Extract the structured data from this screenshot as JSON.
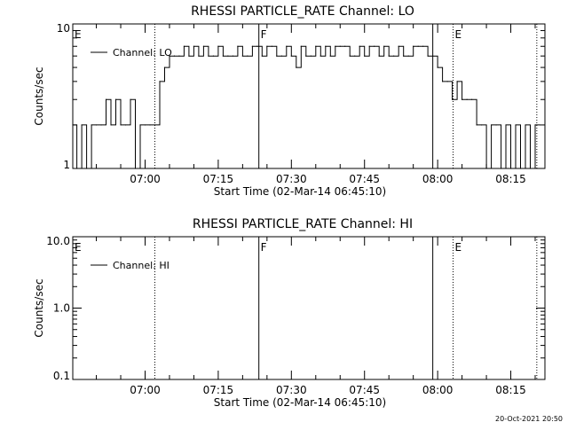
{
  "footer": {
    "timestamp": "20-Oct-2021 20:50"
  },
  "chart_data": [
    {
      "type": "line",
      "title": "RHESSI PARTICLE_RATE Channel: LO",
      "xlabel": "Start Time (02-Mar-14 06:45:10)",
      "ylabel": "Counts/sec",
      "yscale": "log",
      "ylim": [
        1,
        10
      ],
      "xlim": [
        "06:45:10",
        "08:22:00"
      ],
      "y_tick_labels": [
        "1",
        "10"
      ],
      "x_tick_labels": [
        "07:00",
        "07:15",
        "07:30",
        "07:45",
        "08:00",
        "08:15"
      ],
      "legend": {
        "entries": [
          "Channel: LO"
        ],
        "placement": "top-left"
      },
      "markers": [
        {
          "label": "E",
          "time": "06:45:10",
          "style": "solid"
        },
        {
          "label": "",
          "time": "07:02:00",
          "style": "dotted"
        },
        {
          "label": "F",
          "time": "07:23:20",
          "style": "solid"
        },
        {
          "label": "",
          "time": "07:59:00",
          "style": "solid"
        },
        {
          "label": "E",
          "time": "08:03:10",
          "style": "dotted"
        },
        {
          "label": "",
          "time": "08:20:20",
          "style": "dotted"
        }
      ],
      "series": [
        {
          "name": "Channel: LO",
          "x": [
            "06:45",
            "06:46",
            "06:47",
            "06:48",
            "06:49",
            "06:50",
            "06:51",
            "06:52",
            "06:53",
            "06:54",
            "06:55",
            "06:56",
            "06:57",
            "06:58",
            "06:59",
            "07:00",
            "07:01",
            "07:02",
            "07:03",
            "07:04",
            "07:05",
            "07:06",
            "07:07",
            "07:08",
            "07:09",
            "07:10",
            "07:11",
            "07:12",
            "07:13",
            "07:14",
            "07:15",
            "07:16",
            "07:17",
            "07:18",
            "07:19",
            "07:20",
            "07:21",
            "07:22",
            "07:23",
            "07:24",
            "07:25",
            "07:26",
            "07:27",
            "07:28",
            "07:29",
            "07:30",
            "07:31",
            "07:32",
            "07:33",
            "07:34",
            "07:35",
            "07:36",
            "07:37",
            "07:38",
            "07:39",
            "07:40",
            "07:41",
            "07:42",
            "07:43",
            "07:44",
            "07:45",
            "07:46",
            "07:47",
            "07:48",
            "07:49",
            "07:50",
            "07:51",
            "07:52",
            "07:53",
            "07:54",
            "07:55",
            "07:56",
            "07:57",
            "07:58",
            "07:59",
            "08:00",
            "08:01",
            "08:02",
            "08:03",
            "08:04",
            "08:05",
            "08:06",
            "08:07",
            "08:08",
            "08:09",
            "08:10",
            "08:11",
            "08:12",
            "08:13",
            "08:14",
            "08:15",
            "08:16",
            "08:17",
            "08:18",
            "08:19",
            "08:20",
            "08:21"
          ],
          "y": [
            2,
            1,
            2,
            1,
            2,
            2,
            2,
            3,
            2,
            3,
            2,
            2,
            3,
            1,
            2,
            2,
            2,
            2,
            4,
            5,
            6,
            6,
            6,
            7,
            6,
            7,
            6,
            7,
            6,
            6,
            7,
            6,
            6,
            6,
            7,
            6,
            6,
            7,
            7,
            6,
            7,
            7,
            6,
            6,
            7,
            6,
            5,
            7,
            6,
            6,
            7,
            6,
            7,
            6,
            7,
            7,
            7,
            6,
            6,
            7,
            6,
            7,
            7,
            6,
            7,
            6,
            6,
            7,
            6,
            6,
            7,
            7,
            7,
            6,
            6,
            5,
            4,
            4,
            3,
            4,
            3,
            3,
            3,
            2,
            2,
            1,
            2,
            2,
            1,
            2,
            1,
            2,
            1,
            2,
            1,
            2,
            2
          ]
        }
      ]
    },
    {
      "type": "line",
      "title": "RHESSI PARTICLE_RATE Channel: HI",
      "xlabel": "Start Time (02-Mar-14 06:45:10)",
      "ylabel": "Counts/sec",
      "yscale": "log",
      "ylim": [
        0.1,
        10.0
      ],
      "xlim": [
        "06:45:10",
        "08:22:00"
      ],
      "y_tick_labels": [
        "0.1",
        "1.0",
        "10.0"
      ],
      "x_tick_labels": [
        "07:00",
        "07:15",
        "07:30",
        "07:45",
        "08:00",
        "08:15"
      ],
      "legend": {
        "entries": [
          "Channel: HI"
        ],
        "placement": "top-left"
      },
      "markers": [
        {
          "label": "E",
          "time": "06:45:10",
          "style": "solid"
        },
        {
          "label": "",
          "time": "07:02:00",
          "style": "dotted"
        },
        {
          "label": "F",
          "time": "07:23:20",
          "style": "solid"
        },
        {
          "label": "",
          "time": "07:59:00",
          "style": "solid"
        },
        {
          "label": "E",
          "time": "08:03:10",
          "style": "dotted"
        },
        {
          "label": "",
          "time": "08:20:20",
          "style": "dotted"
        }
      ],
      "series": [
        {
          "name": "Channel: HI",
          "x": [],
          "y": []
        }
      ]
    }
  ]
}
